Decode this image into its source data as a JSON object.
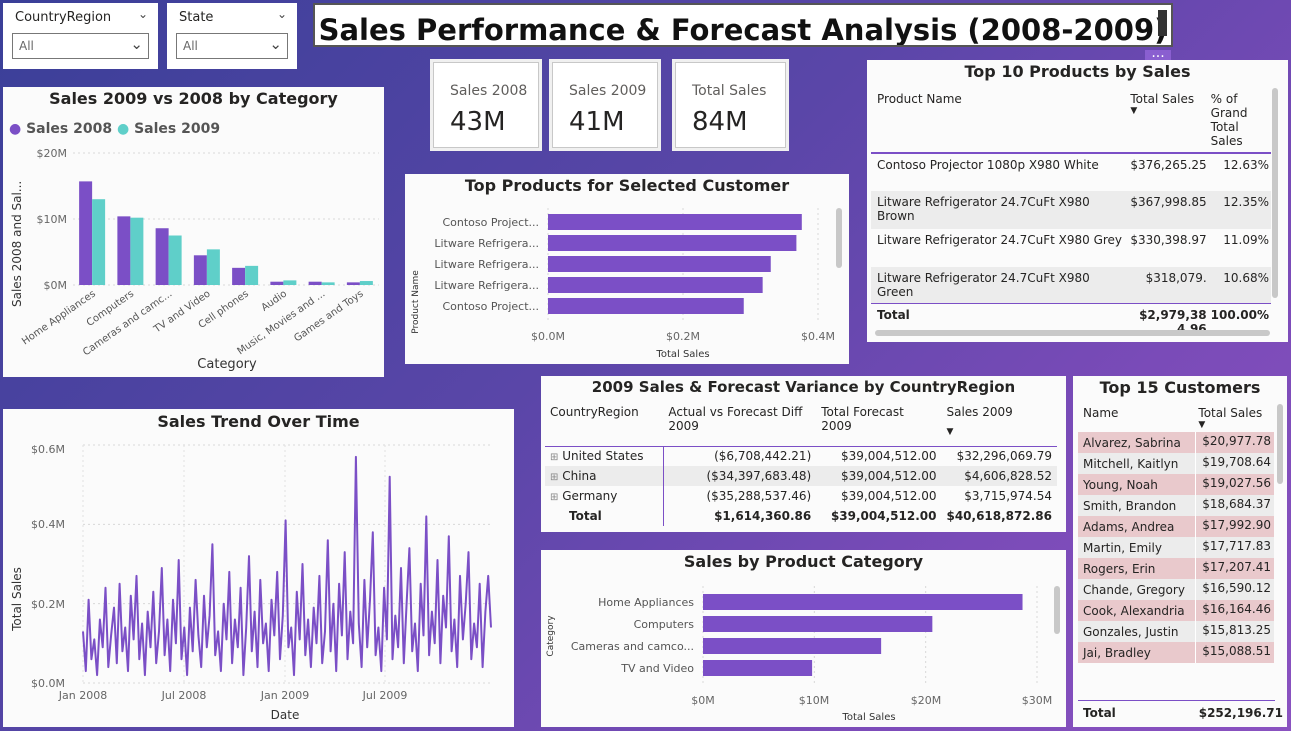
{
  "header": {
    "title": "Sales Performance & Forecast Analysis (2008-2009)"
  },
  "slicers": {
    "country": {
      "label": "CountryRegion",
      "value": "All"
    },
    "state": {
      "label": "State",
      "value": "All"
    }
  },
  "kpis": [
    {
      "label": "Sales 2008",
      "value": "43M"
    },
    {
      "label": "Sales 2009",
      "value": "41M"
    },
    {
      "label": "Total Sales",
      "value": "84M"
    }
  ],
  "colors": {
    "purple": "#7b4fc6",
    "teal": "#5fcfc9",
    "header_row": "#e9c9cc"
  },
  "category_chart": {
    "title": "Sales 2009 vs 2008 by Category",
    "xlabel": "Category",
    "ylabel": "Sales 2008 and Sal...",
    "legend": [
      "Sales 2008",
      "Sales 2009"
    ],
    "ticks": [
      "$20M",
      "$10M",
      "$0M"
    ]
  },
  "trend_chart": {
    "title": "Sales Trend Over Time",
    "xlabel": "Date",
    "ylabel": "Total Sales",
    "yticks": [
      "$0.6M",
      "$0.4M",
      "$0.2M",
      "$0.0M"
    ],
    "xticks": [
      "Jan 2008",
      "Jul 2008",
      "Jan 2009",
      "Jul 2009"
    ]
  },
  "customer_chart": {
    "title": "Top Products for Selected Customer",
    "ylabel": "Product Name",
    "xlabel": "Total Sales",
    "xticks": [
      "$0.0M",
      "$0.2M",
      "$0.4M"
    ]
  },
  "product_cat_chart": {
    "title": "Sales by Product Category",
    "ylabel": "Category",
    "xlabel": "Total Sales",
    "xticks": [
      "$0M",
      "$10M",
      "$20M",
      "$30M"
    ]
  },
  "chart_data": [
    {
      "type": "bar",
      "categories": [
        "Home Appliances",
        "Computers",
        "Cameras and camc...",
        "TV and Video",
        "Cell phones",
        "Audio",
        "Music, Movies and ...",
        "Games and Toys"
      ],
      "series": [
        {
          "name": "Sales 2008",
          "values": [
            15.7,
            10.4,
            8.6,
            4.5,
            2.6,
            0.5,
            0.5,
            0.4
          ]
        },
        {
          "name": "Sales 2009",
          "values": [
            13.0,
            10.2,
            7.5,
            5.4,
            2.9,
            0.7,
            0.4,
            0.6
          ]
        }
      ],
      "ylim": [
        0,
        20
      ]
    },
    {
      "type": "bar",
      "orientation": "horizontal",
      "categories": [
        "Contoso Project...",
        "Litware Refrigera...",
        "Litware Refrigera...",
        "Litware Refrigera...",
        "Contoso Project..."
      ],
      "values": [
        0.376,
        0.368,
        0.33,
        0.318,
        0.29
      ],
      "xlim": [
        0,
        0.4
      ]
    },
    {
      "type": "bar",
      "orientation": "horizontal",
      "categories": [
        "Home Appliances",
        "Computers",
        "Cameras and camco...",
        "TV and Video"
      ],
      "values": [
        28.7,
        20.6,
        16.0,
        9.8
      ],
      "xlim": [
        0,
        30
      ]
    },
    {
      "type": "line",
      "x_range": [
        "Jan 2008",
        "Dec 2009"
      ],
      "ylim": [
        0,
        0.6
      ],
      "values": [
        0.13,
        0.03,
        0.21,
        0.06,
        0.11,
        0.02,
        0.16,
        0.09,
        0.24,
        0.04,
        0.12,
        0.19,
        0.05,
        0.25,
        0.08,
        0.14,
        0.03,
        0.22,
        0.11,
        0.27,
        0.06,
        0.15,
        0.02,
        0.18,
        0.09,
        0.23,
        0.05,
        0.13,
        0.29,
        0.07,
        0.16,
        0.03,
        0.21,
        0.1,
        0.31,
        0.06,
        0.14,
        0.02,
        0.19,
        0.08,
        0.26,
        0.12,
        0.04,
        0.22,
        0.09,
        0.17,
        0.35,
        0.07,
        0.13,
        0.03,
        0.2,
        0.11,
        0.28,
        0.05,
        0.16,
        0.09,
        0.24,
        0.02,
        0.14,
        0.32,
        0.08,
        0.18,
        0.04,
        0.26,
        0.1,
        0.15,
        0.03,
        0.21,
        0.12,
        0.28,
        0.06,
        0.17,
        0.41,
        0.09,
        0.14,
        0.02,
        0.23,
        0.11,
        0.3,
        0.07,
        0.16,
        0.04,
        0.19,
        0.1,
        0.27,
        0.05,
        0.13,
        0.36,
        0.08,
        0.2,
        0.03,
        0.25,
        0.12,
        0.33,
        0.06,
        0.18,
        0.1,
        0.57,
        0.15,
        0.04,
        0.26,
        0.09,
        0.21,
        0.38,
        0.07,
        0.14,
        0.03,
        0.24,
        0.11,
        0.52,
        0.06,
        0.17,
        0.09,
        0.29,
        0.05,
        0.2,
        0.34,
        0.08,
        0.15,
        0.03,
        0.25,
        0.12,
        0.42,
        0.07,
        0.18,
        0.1,
        0.31,
        0.05,
        0.22,
        0.14,
        0.37,
        0.08,
        0.16,
        0.04,
        0.27,
        0.11,
        0.2,
        0.33,
        0.06,
        0.15,
        0.09,
        0.25,
        0.04,
        0.18,
        0.27,
        0.14
      ]
    }
  ],
  "top10": {
    "title": "Top 10 Products by Sales",
    "headers": [
      "Product Name",
      "Total Sales",
      "% of Grand Total Sales"
    ],
    "rows": [
      {
        "name": "Contoso Projector 1080p X980 White",
        "sales": "$376,265.25",
        "pct": "12.63%"
      },
      {
        "name": "Litware Refrigerator 24.7CuFt X980 Brown",
        "sales": "$367,998.85",
        "pct": "12.35%"
      },
      {
        "name": "Litware Refrigerator 24.7CuFt X980 Grey",
        "sales": "$330,398.97",
        "pct": "11.09%"
      },
      {
        "name": "Litware Refrigerator 24.7CuFt X980 Green",
        "sales": "$318,079.",
        "pct": "10.68%"
      }
    ],
    "total": {
      "label": "Total",
      "sales": "$2,979,384.96",
      "pct": "100.00%"
    }
  },
  "forecast": {
    "title": "2009 Sales & Forecast Variance by CountryRegion",
    "headers": [
      "CountryRegion",
      "Actual vs Forecast Diff 2009",
      "Total Forecast 2009",
      "Sales 2009"
    ],
    "rows": [
      {
        "country": "United States",
        "diff": "($6,708,442.21)",
        "forecast": "$39,004,512.00",
        "sales": "$32,296,069.79"
      },
      {
        "country": "China",
        "diff": "($34,397,683.48)",
        "forecast": "$39,004,512.00",
        "sales": "$4,606,828.52"
      },
      {
        "country": "Germany",
        "diff": "($35,288,537.46)",
        "forecast": "$39,004,512.00",
        "sales": "$3,715,974.54"
      }
    ],
    "total": {
      "label": "Total",
      "diff": "$1,614,360.86",
      "forecast": "$39,004,512.00",
      "sales": "$40,618,872.86"
    }
  },
  "customers": {
    "title": "Top 15 Customers",
    "headers": [
      "Name",
      "Total Sales"
    ],
    "rows": [
      {
        "name": "Alvarez, Sabrina",
        "sales": "$20,977.78"
      },
      {
        "name": "Mitchell, Kaitlyn",
        "sales": "$19,708.64"
      },
      {
        "name": "Young, Noah",
        "sales": "$19,027.56"
      },
      {
        "name": "Smith, Brandon",
        "sales": "$18,684.37"
      },
      {
        "name": "Adams, Andrea",
        "sales": "$17,992.90"
      },
      {
        "name": "Martin, Emily",
        "sales": "$17,717.83"
      },
      {
        "name": "Rogers, Erin",
        "sales": "$17,207.41"
      },
      {
        "name": "Chande, Gregory",
        "sales": "$16,590.12"
      },
      {
        "name": "Cook, Alexandria",
        "sales": "$16,164.46"
      },
      {
        "name": "Gonzales, Justin",
        "sales": "$15,813.25"
      },
      {
        "name": "Jai, Bradley",
        "sales": "$15,088.51"
      }
    ],
    "total": {
      "label": "Total",
      "sales": "$252,196.71"
    }
  }
}
